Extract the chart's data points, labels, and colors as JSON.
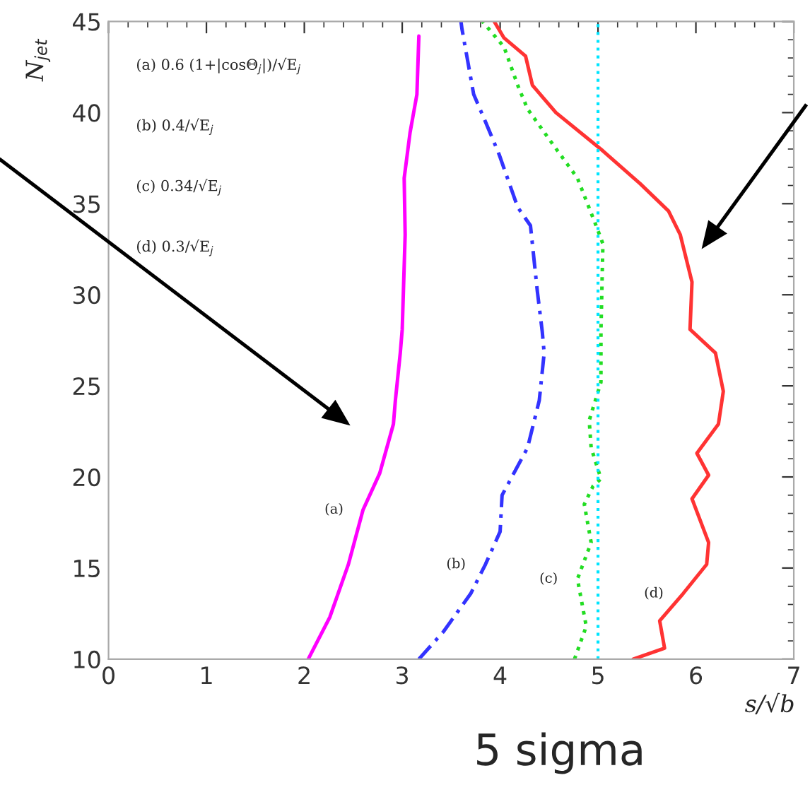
{
  "chart_data": {
    "type": "line",
    "xlabel": "s/√b",
    "ylabel": "N$_{jet}$",
    "xlim": [
      0,
      7
    ],
    "ylim": [
      10,
      45
    ],
    "xticks": [
      0,
      1,
      2,
      3,
      4,
      5,
      6,
      7
    ],
    "yticks": [
      10,
      15,
      20,
      25,
      30,
      35,
      40,
      45
    ],
    "grid": false,
    "legend": false,
    "series": [
      {
        "name": "(a)",
        "color": "#ff00ff",
        "line_style": "solid",
        "x": [
          2.04,
          2.26,
          2.45,
          2.6,
          2.77,
          2.91,
          2.93,
          2.98,
          3.0,
          3.03,
          3.02,
          3.08,
          3.15,
          3.17
        ],
        "values": [
          10,
          12.3,
          15.2,
          18.2,
          20.2,
          22.9,
          24.2,
          26.8,
          28.1,
          33.3,
          36.4,
          38.9,
          41.0,
          44.2
        ]
      },
      {
        "name": "(b)",
        "color": "#3333ff",
        "line_style": "dashed",
        "x": [
          3.17,
          3.42,
          3.7,
          3.85,
          4.0,
          4.02,
          4.11,
          4.28,
          4.4,
          4.45,
          4.43,
          4.38,
          4.31,
          4.18,
          3.99,
          3.85,
          3.73,
          3.61,
          3.6
        ],
        "values": [
          10,
          11.5,
          13.6,
          15.2,
          17.0,
          19.0,
          19.9,
          21.6,
          24.2,
          26.8,
          28.0,
          30.2,
          33.8,
          34.8,
          37.7,
          39.5,
          41.0,
          44.6,
          45
        ]
      },
      {
        "name": "(c)",
        "color": "#22dd22",
        "line_style": "dotted",
        "x": [
          4.76,
          4.88,
          4.79,
          4.93,
          4.86,
          4.95,
          5.03,
          4.93,
          4.91,
          5.03,
          5.03,
          5.05,
          4.98,
          4.79,
          4.52,
          4.28,
          4.18,
          4.04,
          3.82
        ],
        "values": [
          10,
          11.8,
          14.4,
          16.4,
          18.5,
          19.5,
          19.9,
          21.6,
          23.1,
          25.2,
          28.0,
          32.8,
          33.8,
          36.4,
          38.4,
          40.2,
          41.5,
          43.6,
          45
        ]
      },
      {
        "name": "(d)",
        "color": "#ff3333",
        "line_style": "solid",
        "x": [
          5.36,
          5.68,
          5.63,
          5.87,
          6.11,
          6.13,
          5.96,
          6.13,
          6.01,
          6.23,
          6.28,
          6.2,
          5.94,
          5.96,
          5.84,
          5.72,
          5.43,
          5.05,
          4.57,
          4.33,
          4.26,
          4.04,
          3.94
        ],
        "values": [
          10,
          10.6,
          12.1,
          13.6,
          15.2,
          16.4,
          18.8,
          20.1,
          21.3,
          22.9,
          24.7,
          26.8,
          28.1,
          30.7,
          33.3,
          34.6,
          36.1,
          37.9,
          40.0,
          41.5,
          43.1,
          44.1,
          45
        ]
      }
    ],
    "ref_lines": [
      {
        "axis": "x",
        "value": 5,
        "color": "#00e5ff",
        "line_style": "dotted"
      }
    ],
    "annotations": [
      "(a) 0.6 (1+|cosΘ$_{j}$|)/√E$_{j}$",
      "(b) 0.4/√E$_{j}$",
      "(c) 0.34/√E$_{j}$",
      "(d) 0.3/√E$_{j}$",
      "5 sigma"
    ]
  }
}
